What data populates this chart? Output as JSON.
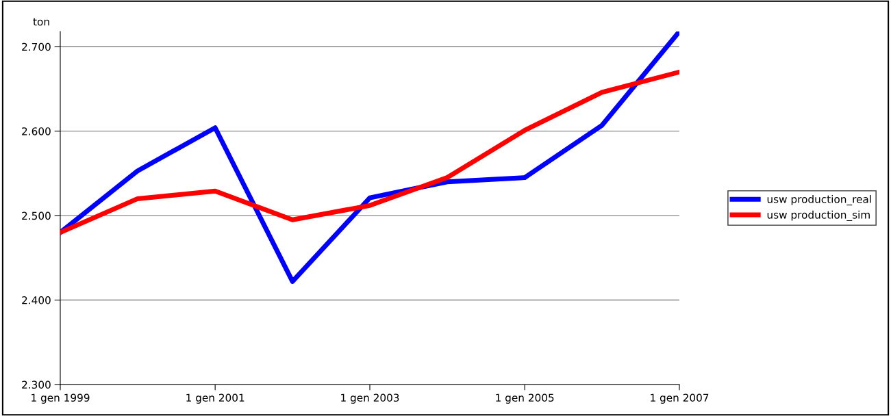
{
  "chart_data": {
    "type": "line",
    "ylabel": "ton",
    "x": [
      "1999-01-01",
      "2000-01-01",
      "2001-01-01",
      "2002-01-01",
      "2003-01-01",
      "2004-01-01",
      "2005-01-01",
      "2006-01-01",
      "2007-01-01"
    ],
    "series": [
      {
        "name": "usw production_real",
        "color": "#0000ff",
        "values": [
          2480,
          2553,
          2604,
          2422,
          2521,
          2540,
          2545,
          2607,
          2718
        ]
      },
      {
        "name": "usw production_sim",
        "color": "#ff0000",
        "values": [
          2480,
          2520,
          2529,
          2495,
          2512,
          2545,
          2601,
          2646,
          2670
        ]
      }
    ],
    "xlim": [
      "1999-01-01",
      "2007-01-01"
    ],
    "xticks": [
      {
        "value": "1999-01-01",
        "label": "1 gen 1999"
      },
      {
        "value": "2001-01-01",
        "label": "1 gen 2001"
      },
      {
        "value": "2003-01-01",
        "label": "1 gen 2003"
      },
      {
        "value": "2005-01-01",
        "label": "1 gen 2005"
      },
      {
        "value": "2007-01-01",
        "label": "1 gen 2007"
      }
    ],
    "ylim": [
      2300,
      2718
    ],
    "yticks": [
      {
        "value": 2300,
        "label": "2.300"
      },
      {
        "value": 2400,
        "label": "2.400"
      },
      {
        "value": 2500,
        "label": "2.500"
      },
      {
        "value": 2600,
        "label": "2.600"
      },
      {
        "value": 2700,
        "label": "2.700"
      }
    ],
    "grid": "y",
    "legend": "right",
    "marker": "none",
    "line_style": "solid"
  }
}
